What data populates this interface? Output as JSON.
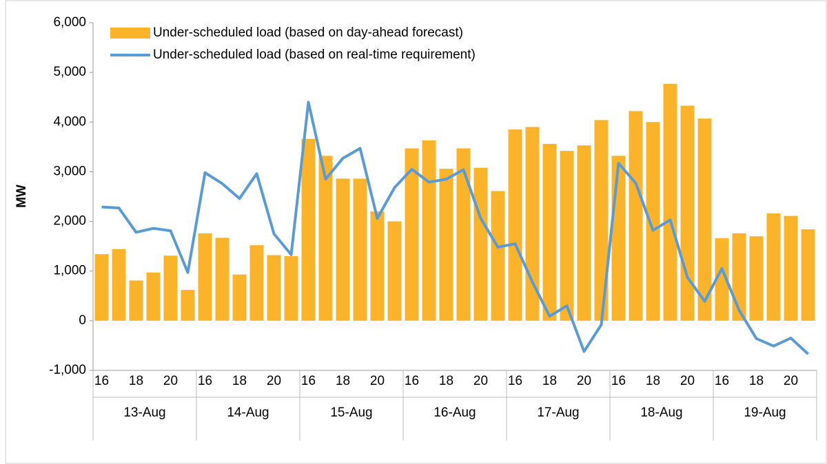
{
  "chart_data": {
    "type": "bar-line",
    "y_label": "MW",
    "categories": [
      "16",
      null,
      "18",
      null,
      "20",
      null,
      "16",
      null,
      "18",
      null,
      "20",
      null,
      "16",
      null,
      "18",
      null,
      "20",
      null,
      "16",
      null,
      "18",
      null,
      "20",
      null,
      "16",
      null,
      "18",
      null,
      "20",
      null,
      "16",
      null,
      "18",
      null,
      "20",
      null,
      "16",
      null,
      "18",
      null,
      "20",
      null
    ],
    "groups": [
      "13-Aug",
      "14-Aug",
      "15-Aug",
      "16-Aug",
      "17-Aug",
      "18-Aug",
      "19-Aug"
    ],
    "series": [
      {
        "name": "Under-scheduled load (based on day-ahead forecast)",
        "type": "bar",
        "color": "#fbb42a",
        "values": [
          1340,
          1440,
          810,
          970,
          1310,
          620,
          1760,
          1670,
          930,
          1520,
          1320,
          1300,
          3660,
          3320,
          2860,
          2860,
          2200,
          2000,
          3470,
          3630,
          3060,
          3470,
          3080,
          2610,
          3850,
          3900,
          3560,
          3420,
          3530,
          4040,
          3320,
          4220,
          4000,
          4770,
          4330,
          4070,
          1660,
          1760,
          1700,
          2160,
          2110,
          1840
        ]
      },
      {
        "name": "Under-scheduled load (based on real-time requirement)",
        "type": "line",
        "color": "#5b9bd5",
        "values": [
          2290,
          2270,
          1780,
          1860,
          1810,
          970,
          2980,
          2760,
          2460,
          2960,
          1750,
          1330,
          4400,
          2850,
          3270,
          3470,
          2060,
          2680,
          3050,
          2790,
          2850,
          3040,
          2060,
          1480,
          1550,
          780,
          90,
          300,
          -620,
          -80,
          3170,
          2770,
          1820,
          2030,
          870,
          390,
          1050,
          210,
          -360,
          -510,
          -350,
          -670
        ]
      }
    ],
    "ylim": [
      -1000,
      6000
    ],
    "yticks": [
      {
        "value": -1000,
        "label": "-1,000"
      },
      0,
      {
        "value": 1000,
        "label": "1,000"
      },
      {
        "value": 2000,
        "label": "2,000"
      },
      {
        "value": 3000,
        "label": "3,000"
      },
      {
        "value": 4000,
        "label": "4,000"
      },
      {
        "value": 5000,
        "label": "5,000"
      },
      {
        "value": 6000,
        "label": "6,000"
      }
    ],
    "legend": "upper-left"
  }
}
